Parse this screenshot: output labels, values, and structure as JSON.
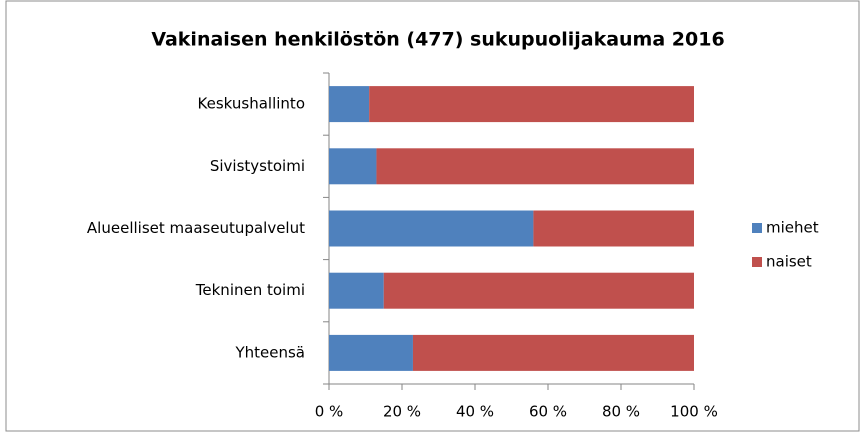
{
  "chart_data": {
    "type": "bar",
    "orientation": "horizontal",
    "stacked": true,
    "title": "Vakinaisen henkilöstön (477) sukupuolijakauma  2016",
    "categories": [
      "Keskushallinto",
      "Sivistystoimi",
      "Alueelliset maaseutupalvelut",
      "Tekninen toimi",
      "Yhteensä"
    ],
    "series": [
      {
        "name": "miehet",
        "color": "#4f81bd",
        "values": [
          11,
          13,
          56,
          15,
          23
        ]
      },
      {
        "name": "naiset",
        "color": "#c0504d",
        "values": [
          89,
          87,
          44,
          85,
          77
        ]
      }
    ],
    "xlim": [
      0,
      100
    ],
    "xticks": [
      {
        "value": 0,
        "label": "0 %"
      },
      {
        "value": 20,
        "label": "20 %"
      },
      {
        "value": 40,
        "label": "40 %"
      },
      {
        "value": 60,
        "label": "60 %"
      },
      {
        "value": 80,
        "label": "80 %"
      },
      {
        "value": 100,
        "label": "100 %"
      }
    ],
    "legend": "right"
  }
}
